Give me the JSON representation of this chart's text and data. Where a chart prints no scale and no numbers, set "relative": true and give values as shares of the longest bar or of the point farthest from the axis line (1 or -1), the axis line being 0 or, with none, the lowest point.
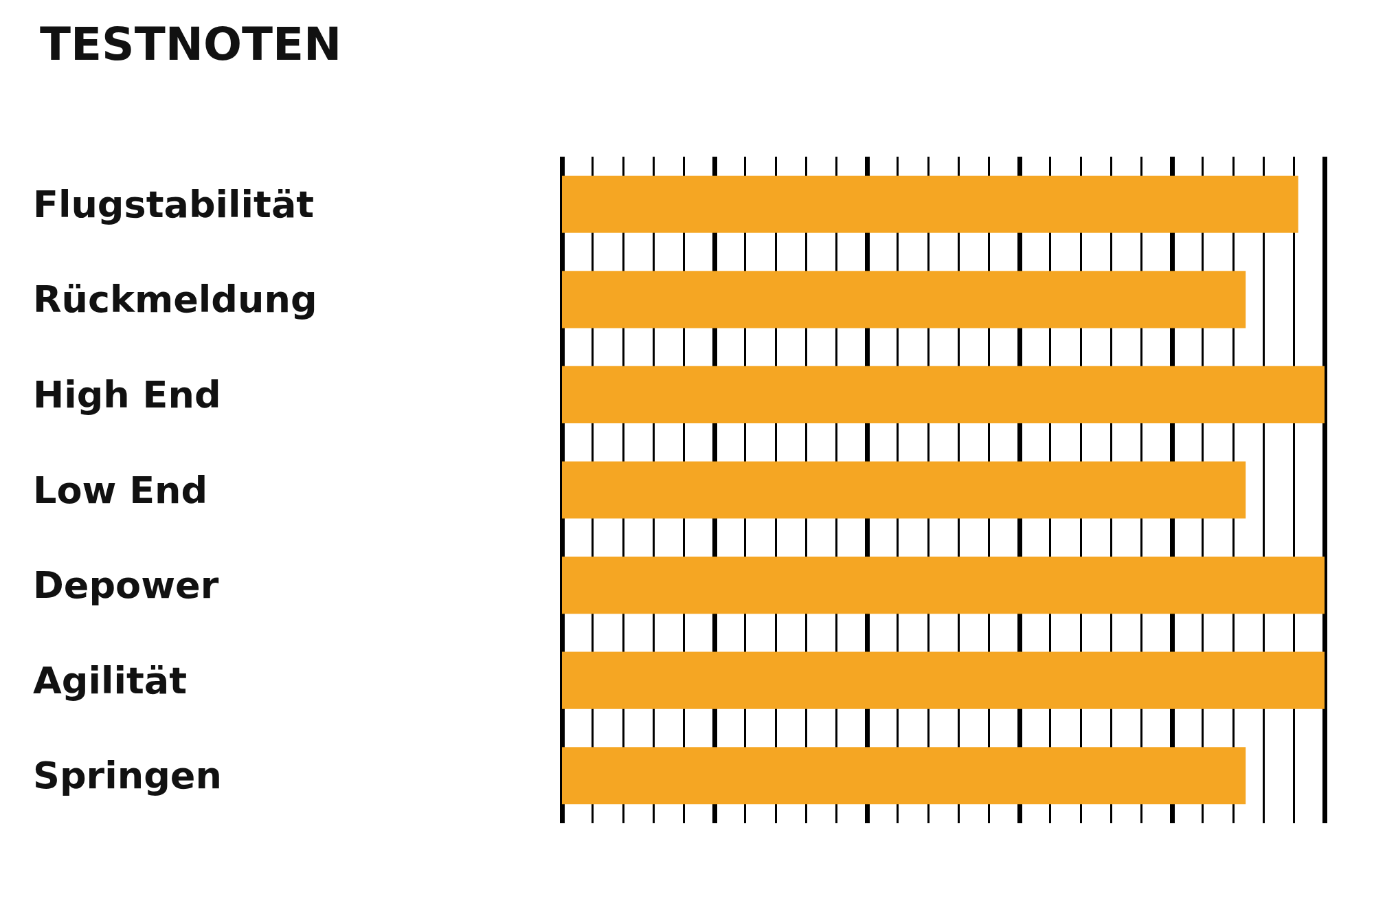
{
  "chart_data": {
    "type": "bar",
    "title": "TESTNOTEN",
    "orientation": "horizontal",
    "relative": true,
    "grid": "x",
    "categories": [
      "Flugstabilität",
      "Rückmeldung",
      "High End",
      "Low End",
      "Depower",
      "Agilität",
      "Springen"
    ],
    "color": "#f5a623",
    "values": [
      0.9655,
      0.8966,
      1,
      0.8966,
      1,
      1,
      0.8966
    ]
  }
}
